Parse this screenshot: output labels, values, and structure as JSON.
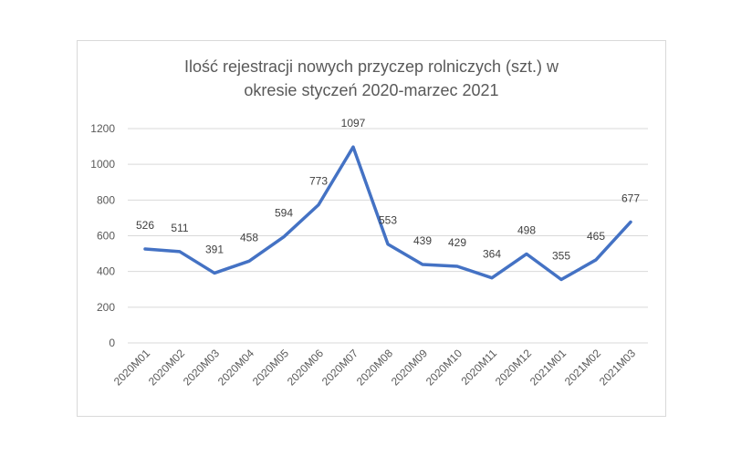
{
  "chart_data": {
    "type": "line",
    "title": "Ilość rejestracji nowych przyczep rolniczych (szt.) w\nokresie styczeń 2020-marzec 2021",
    "xlabel": "",
    "ylabel": "",
    "categories": [
      "2020M01",
      "2020M02",
      "2020M03",
      "2020M04",
      "2020M05",
      "2020M06",
      "2020M07",
      "2020M08",
      "2020M09",
      "2020M10",
      "2020M11",
      "2020M12",
      "2021M01",
      "2021M02",
      "2021M03"
    ],
    "series": [
      {
        "values": [
          526,
          511,
          391,
          458,
          594,
          773,
          1097,
          553,
          439,
          429,
          364,
          498,
          355,
          465,
          677
        ]
      }
    ],
    "ylim": [
      0,
      1200
    ],
    "yticks": [
      0,
      200,
      400,
      600,
      800,
      1000,
      1200
    ],
    "grid": true,
    "legend": "none",
    "line_color": "#4472c4",
    "grid_color": "#d9d9d9",
    "text_color": "#595959"
  }
}
